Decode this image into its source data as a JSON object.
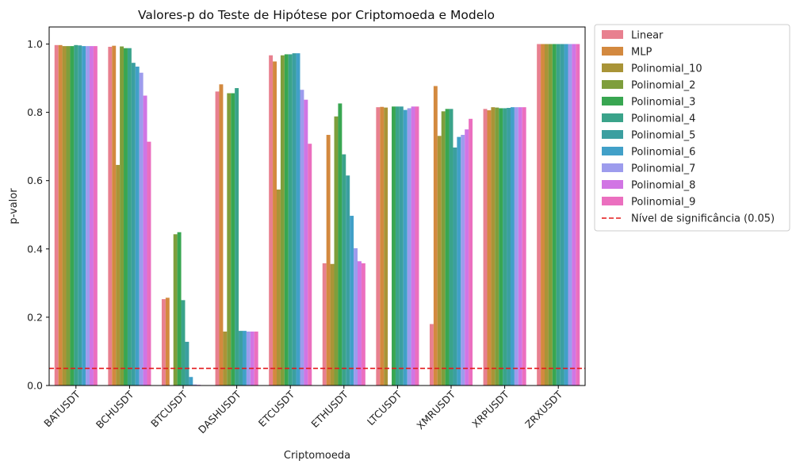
{
  "chart_data": {
    "type": "bar",
    "title": "Valores-p do Teste de Hipótese por Criptomoeda e Modelo",
    "xlabel": "Criptomoeda",
    "ylabel": "p-valor",
    "ylim": [
      0,
      1.05
    ],
    "yticks": [
      "0.0",
      "0.2",
      "0.4",
      "0.6",
      "0.8",
      "1.0"
    ],
    "grid": false,
    "legend_position": "outside-right-top",
    "categories": [
      "BATUSDT",
      "BCHUSDT",
      "BTCUSDT",
      "DASHUSDT",
      "ETCUSDT",
      "ETHUSDT",
      "LTCUSDT",
      "XMRUSDT",
      "XRPUSDT",
      "ZRXUSDT"
    ],
    "series": [
      {
        "name": "Linear",
        "color": "#e8808f",
        "values": [
          0.997,
          0.992,
          0.253,
          0.861,
          0.967,
          0.358,
          0.815,
          0.18,
          0.81,
          1.0
        ]
      },
      {
        "name": "MLP",
        "color": "#d3893f",
        "values": [
          0.997,
          0.995,
          0.257,
          0.882,
          0.949,
          0.734,
          0.816,
          0.877,
          0.806,
          1.0
        ]
      },
      {
        "name": "Polinomial_10",
        "color": "#a99437",
        "values": [
          0.994,
          0.646,
          0.0,
          0.158,
          0.574,
          0.356,
          0.814,
          0.731,
          0.815,
          1.0
        ]
      },
      {
        "name": "Polinomial_2",
        "color": "#7e9e3c",
        "values": [
          0.994,
          0.993,
          0.443,
          0.856,
          0.967,
          0.788,
          0.0,
          0.803,
          0.814,
          1.0
        ]
      },
      {
        "name": "Polinomial_3",
        "color": "#38a651",
        "values": [
          0.994,
          0.988,
          0.449,
          0.856,
          0.97,
          0.826,
          0.817,
          0.81,
          0.812,
          1.0
        ]
      },
      {
        "name": "Polinomial_4",
        "color": "#3aa38a",
        "values": [
          0.997,
          0.988,
          0.25,
          0.871,
          0.97,
          0.677,
          0.817,
          0.81,
          0.812,
          1.0
        ]
      },
      {
        "name": "Polinomial_5",
        "color": "#3b9fa0",
        "values": [
          0.996,
          0.945,
          0.128,
          0.16,
          0.973,
          0.615,
          0.817,
          0.697,
          0.813,
          1.0
        ]
      },
      {
        "name": "Polinomial_6",
        "color": "#41a0c8",
        "values": [
          0.994,
          0.934,
          0.025,
          0.16,
          0.973,
          0.497,
          0.807,
          0.728,
          0.815,
          1.0
        ]
      },
      {
        "name": "Polinomial_7",
        "color": "#9d9ced",
        "values": [
          0.994,
          0.916,
          0.003,
          0.158,
          0.866,
          0.402,
          0.812,
          0.734,
          0.815,
          1.0
        ]
      },
      {
        "name": "Polinomial_8",
        "color": "#d175e4",
        "values": [
          0.994,
          0.849,
          0.002,
          0.158,
          0.837,
          0.364,
          0.817,
          0.75,
          0.815,
          1.0
        ]
      },
      {
        "name": "Polinomial_9",
        "color": "#eb6fbf",
        "values": [
          0.994,
          0.714,
          0.001,
          0.158,
          0.708,
          0.358,
          0.817,
          0.781,
          0.815,
          1.0
        ]
      }
    ],
    "reference_line": {
      "label": "Nível de significância (0.05)",
      "value": 0.05,
      "color": "#e41a1c",
      "style": "dashed"
    }
  }
}
